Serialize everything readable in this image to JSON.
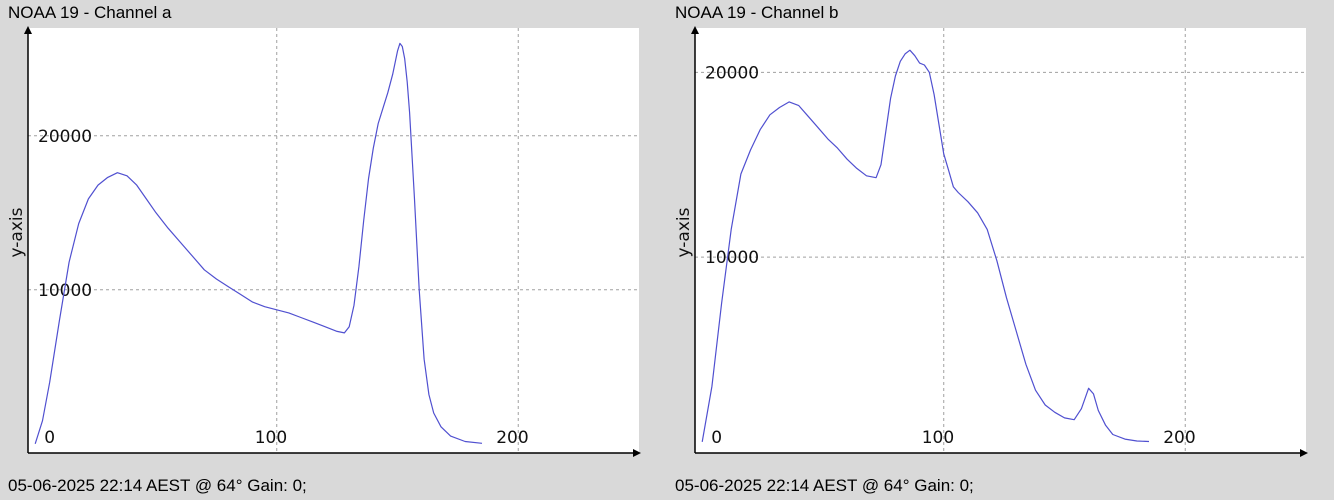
{
  "colors": {
    "line": "#5050d0",
    "grid": "#a0a0a0",
    "plot_bg": "#ffffff",
    "page_bg": "#d9d9d9",
    "axis": "#000000"
  },
  "chart_data": [
    {
      "type": "line",
      "title": "NOAA 19 - Channel a",
      "footer": "05-06-2025 22:14 AEST @ 64° Gain: 0;",
      "ylabel": "y-axis",
      "xlabel": "",
      "xlim": [
        -3,
        250
      ],
      "ylim": [
        -600,
        27000
      ],
      "xticks": [
        0,
        100,
        200
      ],
      "yticks": [
        10000,
        20000
      ],
      "grid": true,
      "series": [
        {
          "x": [
            0,
            3,
            6,
            10,
            14,
            18,
            22,
            26,
            30,
            34,
            38,
            42,
            46,
            50,
            55,
            60,
            65,
            70,
            75,
            80,
            85,
            90,
            95,
            100,
            105,
            110,
            115,
            120,
            125,
            128,
            130,
            132,
            134,
            136,
            138,
            140,
            142,
            144,
            146,
            148,
            150,
            151,
            152,
            153,
            154,
            155,
            157,
            159,
            161,
            163,
            165,
            168,
            172,
            178,
            185
          ],
          "y": [
            0,
            1500,
            4000,
            8000,
            11800,
            14300,
            15900,
            16800,
            17300,
            17600,
            17400,
            16800,
            15900,
            15000,
            14000,
            13100,
            12200,
            11300,
            10700,
            10200,
            9700,
            9200,
            8900,
            8700,
            8500,
            8200,
            7900,
            7600,
            7300,
            7200,
            7600,
            9000,
            11500,
            14500,
            17200,
            19200,
            20800,
            21800,
            22800,
            24000,
            25500,
            26000,
            25800,
            25000,
            23500,
            21500,
            16000,
            10000,
            5500,
            3200,
            2000,
            1100,
            500,
            150,
            30
          ]
        }
      ]
    },
    {
      "type": "line",
      "title": "NOAA 19 - Channel b",
      "footer": "05-06-2025 22:14 AEST @ 64° Gain: 0;",
      "ylabel": "y-axis",
      "xlabel": "",
      "xlim": [
        -3,
        250
      ],
      "ylim": [
        -600,
        22400
      ],
      "xticks": [
        0,
        100,
        200
      ],
      "yticks": [
        10000,
        20000
      ],
      "grid": true,
      "series": [
        {
          "x": [
            0,
            4,
            8,
            12,
            16,
            20,
            24,
            28,
            32,
            36,
            40,
            44,
            48,
            52,
            56,
            60,
            64,
            68,
            72,
            74,
            76,
            78,
            80,
            82,
            84,
            86,
            88,
            90,
            92,
            94,
            96,
            98,
            100,
            102,
            104,
            106,
            110,
            114,
            118,
            122,
            126,
            130,
            134,
            138,
            142,
            146,
            150,
            154,
            157,
            160,
            162,
            164,
            167,
            170,
            175,
            180,
            185
          ],
          "y": [
            0,
            3000,
            7500,
            11500,
            14500,
            15800,
            16900,
            17700,
            18100,
            18400,
            18200,
            17600,
            17000,
            16400,
            15900,
            15300,
            14800,
            14400,
            14300,
            15000,
            16800,
            18600,
            19800,
            20600,
            21000,
            21200,
            20900,
            20500,
            20400,
            20000,
            18800,
            17200,
            15600,
            14700,
            13800,
            13500,
            13000,
            12400,
            11500,
            9800,
            7800,
            6000,
            4200,
            2800,
            2000,
            1600,
            1300,
            1200,
            1800,
            2900,
            2600,
            1700,
            900,
            400,
            150,
            50,
            20
          ]
        }
      ]
    }
  ]
}
